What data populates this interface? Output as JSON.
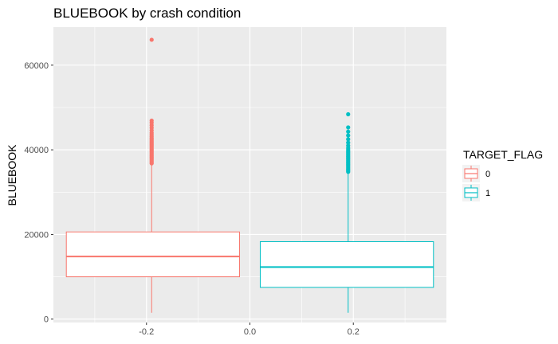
{
  "chart_data": {
    "type": "boxplot",
    "title": "BLUEBOOK by crash condition",
    "xlabel": "",
    "ylabel": "BLUEBOOK",
    "xlim": [
      -0.38,
      0.38
    ],
    "ylim": [
      -800,
      69000
    ],
    "x_ticks": [
      -0.2,
      0.0,
      0.2
    ],
    "x_tick_labels": [
      "-0.2",
      "0.0",
      "0.2"
    ],
    "y_ticks": [
      0,
      20000,
      40000,
      60000
    ],
    "y_tick_labels": [
      "0",
      "20000",
      "40000",
      "60000"
    ],
    "grid": true,
    "panel_background": "#ebebeb",
    "legend": {
      "title": "TARGET_FLAG",
      "position": "right",
      "entries": [
        {
          "label": "0",
          "color": "#f8766d"
        },
        {
          "label": "1",
          "color": "#00bfc4"
        }
      ]
    },
    "series": [
      {
        "name": "0",
        "color": "#f8766d",
        "x_range": [
          -0.355,
          -0.02
        ],
        "x_center": -0.19,
        "min": 1500,
        "q1": 10000,
        "median": 14800,
        "q3": 20600,
        "max": 36500,
        "outliers": [
          36800,
          37100,
          37400,
          37700,
          38000,
          38300,
          38600,
          38900,
          39200,
          39500,
          39800,
          40100,
          40400,
          40700,
          41000,
          41300,
          41600,
          41900,
          42200,
          42500,
          42800,
          43200,
          43600,
          44000,
          44600,
          45200,
          45800,
          46400,
          46900,
          66000
        ]
      },
      {
        "name": "1",
        "color": "#00bfc4",
        "x_range": [
          0.02,
          0.355
        ],
        "x_center": 0.19,
        "min": 1500,
        "q1": 7500,
        "median": 12300,
        "q3": 18300,
        "max": 34500,
        "outliers": [
          34800,
          35100,
          35400,
          35700,
          36000,
          36300,
          36600,
          36900,
          37200,
          37500,
          37800,
          38100,
          38400,
          38700,
          39000,
          39300,
          39600,
          40000,
          40400,
          41000,
          41700,
          42500,
          43400,
          44300,
          45300,
          48400
        ]
      }
    ]
  }
}
